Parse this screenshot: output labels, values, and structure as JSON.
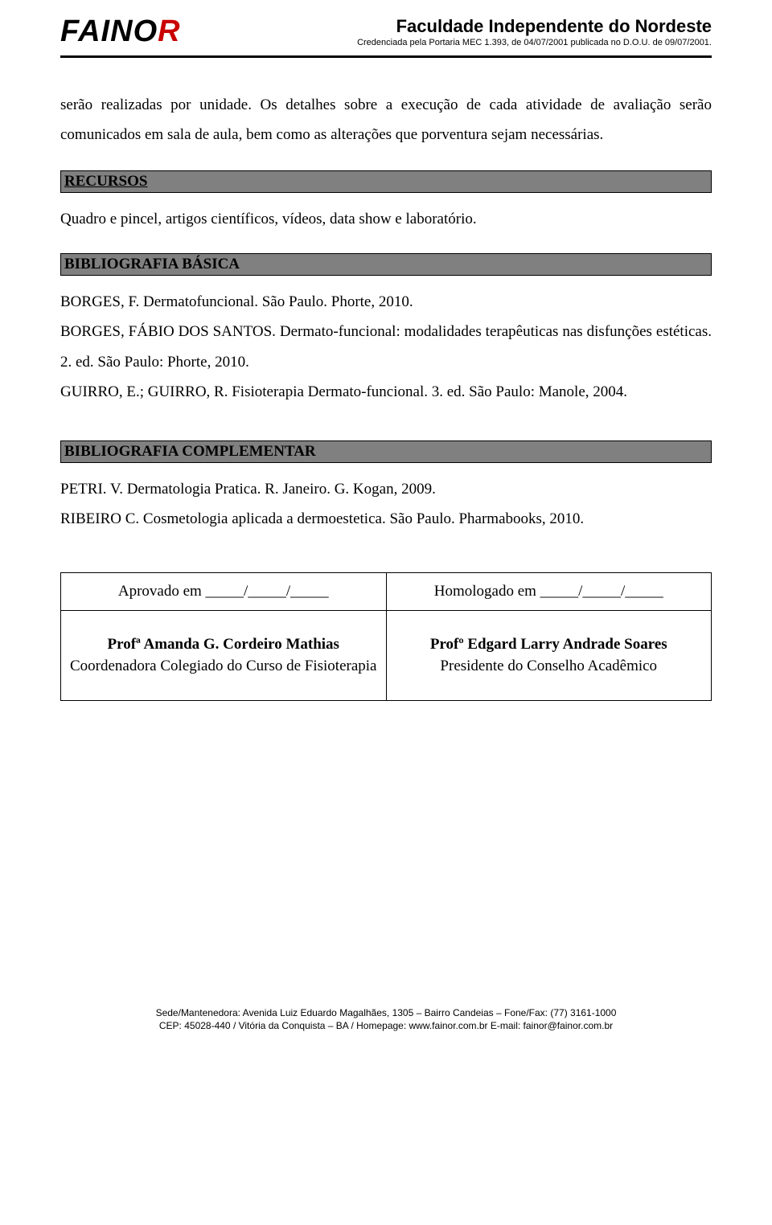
{
  "header": {
    "logo_black": "FAIN",
    "logo_o": "O",
    "logo_r": "R",
    "title": "Faculdade Independente do Nordeste",
    "subtitle": "Credenciada pela Portaria MEC 1.393, de 04/07/2001 publicada no D.O.U. de 09/07/2001."
  },
  "intro": "serão realizadas por unidade. Os detalhes sobre a execução de cada atividade de avaliação serão comunicados em sala de aula, bem como as alterações que porventura sejam necessárias.",
  "sections": {
    "recursos": {
      "title": "RECURSOS",
      "text": "Quadro e pincel, artigos científicos, vídeos, data show e laboratório."
    },
    "bib_basica": {
      "title": "BIBLIOGRAFIA BÁSICA",
      "p1": "BORGES, F. Dermatofuncional. São Paulo. Phorte, 2010.",
      "p2": "BORGES, FÁBIO DOS SANTOS. Dermato-funcional: modalidades terapêuticas nas disfunções  estéticas. 2. ed. São Paulo: Phorte, 2010.",
      "p3": "GUIRRO, E.; GUIRRO, R. Fisioterapia Dermato-funcional. 3. ed. São Paulo: Manole, 2004."
    },
    "bib_comp": {
      "title": "BIBLIOGRAFIA COMPLEMENTAR",
      "p1": "PETRI. V. Dermatologia Pratica. R. Janeiro. G. Kogan, 2009.",
      "p2": "RIBEIRO C. Cosmetologia aplicada a dermoestetica. São Paulo. Pharmabooks, 2010."
    }
  },
  "sig": {
    "aprovado": "Aprovado em _____/_____/_____",
    "homolog": "Homologado em _____/_____/_____",
    "left_name": "Profª Amanda G. Cordeiro Mathias",
    "left_role": "Coordenadora Colegiado do Curso de Fisioterapia",
    "right_name": "Profº Edgard Larry Andrade Soares",
    "right_role": "Presidente do Conselho Acadêmico"
  },
  "footer": {
    "line1": "Sede/Mantenedora: Avenida Luiz Eduardo Magalhães, 1305 – Bairro Candeias – Fone/Fax: (77) 3161-1000",
    "line2": "CEP: 45028-440 / Vitória da Conquista – BA / Homepage: www.fainor.com.br  E-mail: fainor@fainor.com.br"
  }
}
